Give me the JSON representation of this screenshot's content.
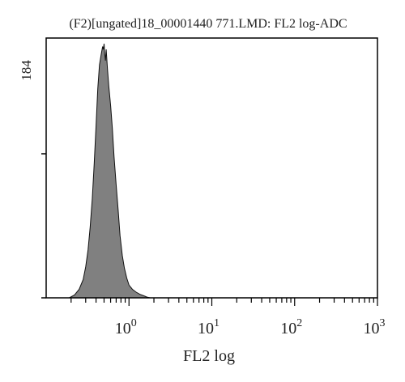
{
  "chart_data": {
    "type": "area",
    "title": "(F2)[ungated]18_00001440 771.LMD: FL2 log-ADC",
    "xlabel": "FL2 log",
    "ylabel": "",
    "x_scale": "log",
    "xlim": [
      0.1,
      1000
    ],
    "ylim": [
      0,
      184
    ],
    "y_max_label": "184",
    "x_ticks": [
      {
        "value": 1,
        "base": "10",
        "exp": "0"
      },
      {
        "value": 10,
        "base": "10",
        "exp": "1"
      },
      {
        "value": 100,
        "base": "10",
        "exp": "2"
      },
      {
        "value": 1000,
        "base": "10",
        "exp": "3"
      }
    ],
    "fill_color": "#808080",
    "series": [
      {
        "x": [
          0.19,
          0.22,
          0.25,
          0.28,
          0.3,
          0.32,
          0.34,
          0.36,
          0.38,
          0.4,
          0.42,
          0.44,
          0.46,
          0.48,
          0.49,
          0.5,
          0.51,
          0.52,
          0.53,
          0.55,
          0.57,
          0.6,
          0.63,
          0.66,
          0.7,
          0.74,
          0.78,
          0.83,
          0.88,
          0.94,
          1.0,
          1.1,
          1.22,
          1.35,
          1.5,
          1.65,
          1.8
        ],
        "values": [
          0,
          2,
          6,
          13,
          22,
          34,
          50,
          70,
          95,
          122,
          148,
          165,
          172,
          178,
          176,
          180,
          173,
          168,
          176,
          162,
          150,
          136,
          120,
          100,
          80,
          62,
          44,
          30,
          21,
          14,
          9,
          6,
          4,
          2.5,
          1.5,
          0.5,
          0
        ]
      }
    ]
  }
}
